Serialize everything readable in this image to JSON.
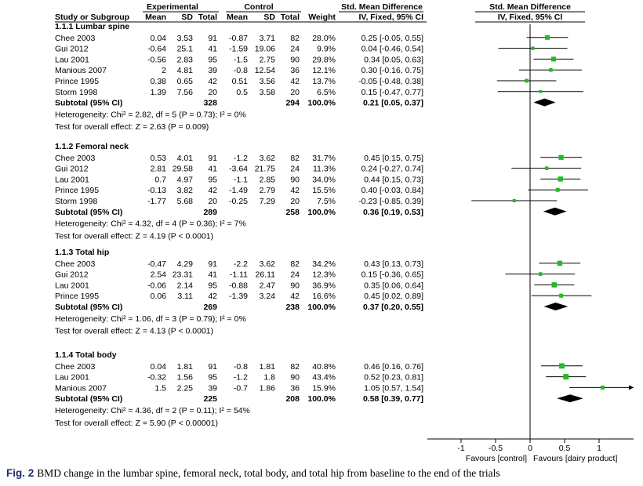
{
  "header": {
    "group1": "Experimental",
    "group2": "Control",
    "effect_title": "Std. Mean Difference",
    "plot_title": "Std. Mean Difference",
    "columns": [
      "Study or Subgroup",
      "Mean",
      "SD",
      "Total",
      "Mean",
      "SD",
      "Total",
      "Weight",
      "IV, Fixed, 95% CI",
      "IV, Fixed, 95% CI"
    ]
  },
  "caption": {
    "label": "Fig. 2",
    "text": "BMD change in the lumbar spine, femoral neck, total body, and total hip from baseline to the end of the trials"
  },
  "chart_data": {
    "type": "forest",
    "axis": {
      "xlim": [
        -1.5,
        1.5
      ],
      "ticks": [
        -1,
        -0.5,
        0,
        0.5,
        1
      ],
      "tick_labels": [
        "-1",
        "-0.5",
        "0",
        "0.5",
        "1"
      ],
      "left_label": "Favours [control]",
      "right_label": "Favours [dairy product]"
    },
    "colors": {
      "marker": "#22bb22",
      "diamond": "#000000"
    },
    "subgroups": [
      {
        "title": "1.1.1 Lumbar spine",
        "studies": [
          {
            "name": "Chee 2003",
            "e_mean": "0.04",
            "e_sd": "3.53",
            "e_n": "91",
            "c_mean": "-0.87",
            "c_sd": "3.71",
            "c_n": "82",
            "weight": "28.0%",
            "ci_text": "0.25 [-0.05, 0.55]",
            "est": 0.25,
            "lo": -0.05,
            "hi": 0.55,
            "w": 28.0
          },
          {
            "name": "Gui 2012",
            "e_mean": "-0.64",
            "e_sd": "25.1",
            "e_n": "41",
            "c_mean": "-1.59",
            "c_sd": "19.06",
            "c_n": "24",
            "weight": "9.9%",
            "ci_text": "0.04 [-0.46, 0.54]",
            "est": 0.04,
            "lo": -0.46,
            "hi": 0.54,
            "w": 9.9
          },
          {
            "name": "Lau 2001",
            "e_mean": "-0.56",
            "e_sd": "2.83",
            "e_n": "95",
            "c_mean": "-1.5",
            "c_sd": "2.75",
            "c_n": "90",
            "weight": "29.8%",
            "ci_text": "0.34 [0.05, 0.63]",
            "est": 0.34,
            "lo": 0.05,
            "hi": 0.63,
            "w": 29.8
          },
          {
            "name": "Manious 2007",
            "e_mean": "2",
            "e_sd": "4.81",
            "e_n": "39",
            "c_mean": "-0.8",
            "c_sd": "12.54",
            "c_n": "36",
            "weight": "12.1%",
            "ci_text": "0.30 [-0.16, 0.75]",
            "est": 0.3,
            "lo": -0.16,
            "hi": 0.75,
            "w": 12.1
          },
          {
            "name": "Prince 1995",
            "e_mean": "0.38",
            "e_sd": "0.65",
            "e_n": "42",
            "c_mean": "0.51",
            "c_sd": "3.56",
            "c_n": "42",
            "weight": "13.7%",
            "ci_text": "-0.05 [-0.48, 0.38]",
            "est": -0.05,
            "lo": -0.48,
            "hi": 0.38,
            "w": 13.7
          },
          {
            "name": "Storm 1998",
            "e_mean": "1.39",
            "e_sd": "7.56",
            "e_n": "20",
            "c_mean": "0.5",
            "c_sd": "3.58",
            "c_n": "20",
            "weight": "6.5%",
            "ci_text": "0.15 [-0.47, 0.77]",
            "est": 0.15,
            "lo": -0.47,
            "hi": 0.77,
            "w": 6.5
          }
        ],
        "subtotal": {
          "label": "Subtotal (95% CI)",
          "e_n": "328",
          "c_n": "294",
          "weight": "100.0%",
          "ci_text": "0.21 [0.05, 0.37]",
          "est": 0.21,
          "lo": 0.05,
          "hi": 0.37
        },
        "heterogeneity": "Heterogeneity: Chi² = 2.82, df = 5 (P = 0.73); I² = 0%",
        "overall": "Test for overall effect: Z = 2.63 (P = 0.009)"
      },
      {
        "title": "1.1.2 Femoral neck",
        "studies": [
          {
            "name": "Chee 2003",
            "e_mean": "0.53",
            "e_sd": "4.01",
            "e_n": "91",
            "c_mean": "-1.2",
            "c_sd": "3.62",
            "c_n": "82",
            "weight": "31.7%",
            "ci_text": "0.45 [0.15, 0.75]",
            "est": 0.45,
            "lo": 0.15,
            "hi": 0.75,
            "w": 31.7
          },
          {
            "name": "Gui 2012",
            "e_mean": "2.81",
            "e_sd": "29.58",
            "e_n": "41",
            "c_mean": "-3.64",
            "c_sd": "21.75",
            "c_n": "24",
            "weight": "11.3%",
            "ci_text": "0.24 [-0.27, 0.74]",
            "est": 0.24,
            "lo": -0.27,
            "hi": 0.74,
            "w": 11.3
          },
          {
            "name": "Lau 2001",
            "e_mean": "0.7",
            "e_sd": "4.97",
            "e_n": "95",
            "c_mean": "-1.1",
            "c_sd": "2.85",
            "c_n": "90",
            "weight": "34.0%",
            "ci_text": "0.44 [0.15, 0.73]",
            "est": 0.44,
            "lo": 0.15,
            "hi": 0.73,
            "w": 34.0
          },
          {
            "name": "Prince 1995",
            "e_mean": "-0.13",
            "e_sd": "3.82",
            "e_n": "42",
            "c_mean": "-1.49",
            "c_sd": "2.79",
            "c_n": "42",
            "weight": "15.5%",
            "ci_text": "0.40 [-0.03, 0.84]",
            "est": 0.4,
            "lo": -0.03,
            "hi": 0.84,
            "w": 15.5
          },
          {
            "name": "Storm 1998",
            "e_mean": "-1.77",
            "e_sd": "5.68",
            "e_n": "20",
            "c_mean": "-0.25",
            "c_sd": "7.29",
            "c_n": "20",
            "weight": "7.5%",
            "ci_text": "-0.23 [-0.85, 0.39]",
            "est": -0.23,
            "lo": -0.85,
            "hi": 0.39,
            "w": 7.5
          }
        ],
        "subtotal": {
          "label": "Subtotal (95% CI)",
          "e_n": "289",
          "c_n": "258",
          "weight": "100.0%",
          "ci_text": "0.36 [0.19, 0.53]",
          "est": 0.36,
          "lo": 0.19,
          "hi": 0.53
        },
        "heterogeneity": "Heterogeneity: Chi² = 4.32, df = 4 (P = 0.36); I² = 7%",
        "overall": "Test for overall effect: Z = 4.19 (P < 0.0001)"
      },
      {
        "title": "1.1.3 Total hip",
        "studies": [
          {
            "name": "Chee 2003",
            "e_mean": "-0.47",
            "e_sd": "4.29",
            "e_n": "91",
            "c_mean": "-2.2",
            "c_sd": "3.62",
            "c_n": "82",
            "weight": "34.2%",
            "ci_text": "0.43 [0.13, 0.73]",
            "est": 0.43,
            "lo": 0.13,
            "hi": 0.73,
            "w": 34.2
          },
          {
            "name": "Gui 2012",
            "e_mean": "2.54",
            "e_sd": "23.31",
            "e_n": "41",
            "c_mean": "-1.11",
            "c_sd": "26.11",
            "c_n": "24",
            "weight": "12.3%",
            "ci_text": "0.15 [-0.36, 0.65]",
            "est": 0.15,
            "lo": -0.36,
            "hi": 0.65,
            "w": 12.3
          },
          {
            "name": "Lau 2001",
            "e_mean": "-0.06",
            "e_sd": "2.14",
            "e_n": "95",
            "c_mean": "-0.88",
            "c_sd": "2.47",
            "c_n": "90",
            "weight": "36.9%",
            "ci_text": "0.35 [0.06, 0.64]",
            "est": 0.35,
            "lo": 0.06,
            "hi": 0.64,
            "w": 36.9
          },
          {
            "name": "Prince 1995",
            "e_mean": "0.06",
            "e_sd": "3.11",
            "e_n": "42",
            "c_mean": "-1.39",
            "c_sd": "3.24",
            "c_n": "42",
            "weight": "16.6%",
            "ci_text": "0.45 [0.02, 0.89]",
            "est": 0.45,
            "lo": 0.02,
            "hi": 0.89,
            "w": 16.6
          }
        ],
        "subtotal": {
          "label": "Subtotal (95% CI)",
          "e_n": "269",
          "c_n": "238",
          "weight": "100.0%",
          "ci_text": "0.37 [0.20, 0.55]",
          "est": 0.37,
          "lo": 0.2,
          "hi": 0.55
        },
        "heterogeneity": "Heterogeneity: Chi² = 1.06, df = 3 (P = 0.79); I² = 0%",
        "overall": "Test for overall effect: Z = 4.13 (P < 0.0001)"
      },
      {
        "title": "1.1.4 Total body",
        "studies": [
          {
            "name": "Chee 2003",
            "e_mean": "0.04",
            "e_sd": "1.81",
            "e_n": "91",
            "c_mean": "-0.8",
            "c_sd": "1.81",
            "c_n": "82",
            "weight": "40.8%",
            "ci_text": "0.46 [0.16, 0.76]",
            "est": 0.46,
            "lo": 0.16,
            "hi": 0.76,
            "w": 40.8
          },
          {
            "name": "Lau 2001",
            "e_mean": "-0.32",
            "e_sd": "1.56",
            "e_n": "95",
            "c_mean": "-1.2",
            "c_sd": "1.8",
            "c_n": "90",
            "weight": "43.4%",
            "ci_text": "0.52 [0.23, 0.81]",
            "est": 0.52,
            "lo": 0.23,
            "hi": 0.81,
            "w": 43.4
          },
          {
            "name": "Manious 2007",
            "e_mean": "1.5",
            "e_sd": "2.25",
            "e_n": "39",
            "c_mean": "-0.7",
            "c_sd": "1.86",
            "c_n": "36",
            "weight": "15.9%",
            "ci_text": "1.05 [0.57, 1.54]",
            "est": 1.05,
            "lo": 0.57,
            "hi": 1.54,
            "w": 15.9
          }
        ],
        "subtotal": {
          "label": "Subtotal (95% CI)",
          "e_n": "225",
          "c_n": "208",
          "weight": "100.0%",
          "ci_text": "0.58 [0.39, 0.77]",
          "est": 0.58,
          "lo": 0.39,
          "hi": 0.77
        },
        "heterogeneity": "Heterogeneity: Chi² = 4.36, df = 2 (P = 0.11); I² = 54%",
        "overall": "Test for overall effect: Z = 5.90 (P < 0.00001)"
      }
    ]
  }
}
